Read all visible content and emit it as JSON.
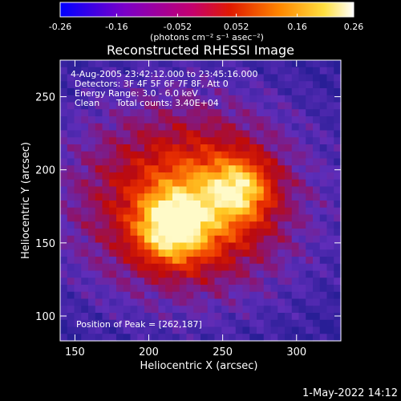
{
  "chart_data": {
    "type": "heatmap",
    "title": "Reconstructed RHESSI Image",
    "xlabel": "Heliocentric X (arcsec)",
    "ylabel": "Heliocentric Y (arcsec)",
    "xlim": [
      140,
      330
    ],
    "ylim": [
      83,
      275
    ],
    "xticks": [
      150,
      200,
      250,
      300
    ],
    "yticks": [
      100,
      150,
      200,
      250
    ],
    "colorbar": {
      "label": "(photons cm⁻² s⁻¹ asec⁻²)",
      "range": [
        -0.26,
        0.26
      ],
      "ticks": [
        "-0.26",
        "-0.16",
        "-0.052",
        "0.052",
        "0.16",
        "0.26"
      ],
      "tick_values": [
        -0.26,
        -0.16,
        -0.052,
        0.052,
        0.16,
        0.26
      ]
    },
    "annotations": [
      "4-Aug-2005 23:42:12.000 to 23:45:16.000",
      "Detectors: 3F 4F 5F 6F 7F 8F, Att 0",
      "Energy Range: 3.0 - 6.0 keV",
      "Clean",
      "Total counts: 3.40E+04"
    ],
    "peak_label": "Position of Peak = [262,187]",
    "peak": [
      262,
      187
    ],
    "secondary_peak": [
      215,
      160
    ],
    "grid": false
  },
  "footer": {
    "timestamp": "1-May-2022 14:12"
  }
}
